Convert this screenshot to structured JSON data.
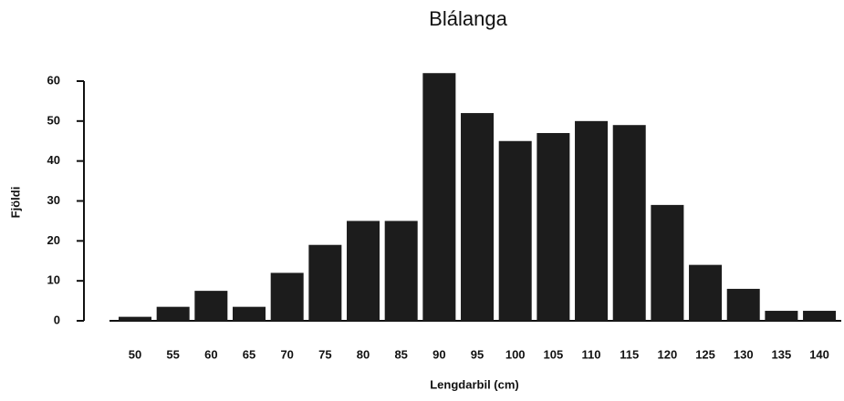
{
  "chart_data": {
    "type": "bar",
    "title": "Blálanga",
    "x_label": "Lengdarbil (cm)",
    "y_label": "Fjöldi",
    "categories": [
      "50",
      "55",
      "60",
      "65",
      "70",
      "75",
      "80",
      "85",
      "90",
      "95",
      "100",
      "105",
      "110",
      "115",
      "120",
      "125",
      "130",
      "135",
      "140"
    ],
    "values": [
      1,
      3.5,
      7.5,
      3.5,
      12,
      19,
      25,
      25,
      62,
      52,
      45,
      47,
      50,
      49,
      29,
      14,
      8,
      2.5,
      2.5
    ],
    "color": "#1c1c1c",
    "ylim": [
      0,
      60
    ],
    "yticks": [
      0,
      10,
      20,
      30,
      40,
      50,
      60
    ],
    "grid": false
  }
}
